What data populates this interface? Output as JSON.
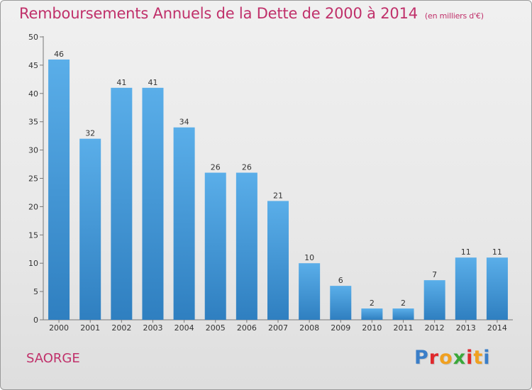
{
  "title": "Remboursements Annuels de la Dette de 2000 à 2014",
  "unit": "(en milliers d'€)",
  "commune": "SAORGE",
  "logo": [
    "P",
    "r",
    "o",
    "x",
    "i",
    "t",
    "i"
  ],
  "colors": {
    "title": "#c0306a",
    "bar_light": "#5aaee9",
    "bar_dark": "#2f7fc0",
    "logo": [
      "#3a7ec8",
      "#e0282c",
      "#f0a020",
      "#3aa83a",
      "#e0282c",
      "#f0a020",
      "#3a7ec8"
    ]
  },
  "chart_data": {
    "type": "bar",
    "categories": [
      "2000",
      "2001",
      "2002",
      "2003",
      "2004",
      "2005",
      "2006",
      "2007",
      "2008",
      "2009",
      "2010",
      "2011",
      "2012",
      "2013",
      "2014"
    ],
    "values": [
      46,
      32,
      41,
      41,
      34,
      26,
      26,
      21,
      10,
      6,
      2,
      2,
      7,
      11,
      11
    ],
    "ylim": [
      0,
      50
    ],
    "yticks": [
      0,
      5,
      10,
      15,
      20,
      25,
      30,
      35,
      40,
      45,
      50
    ],
    "grid": false
  }
}
